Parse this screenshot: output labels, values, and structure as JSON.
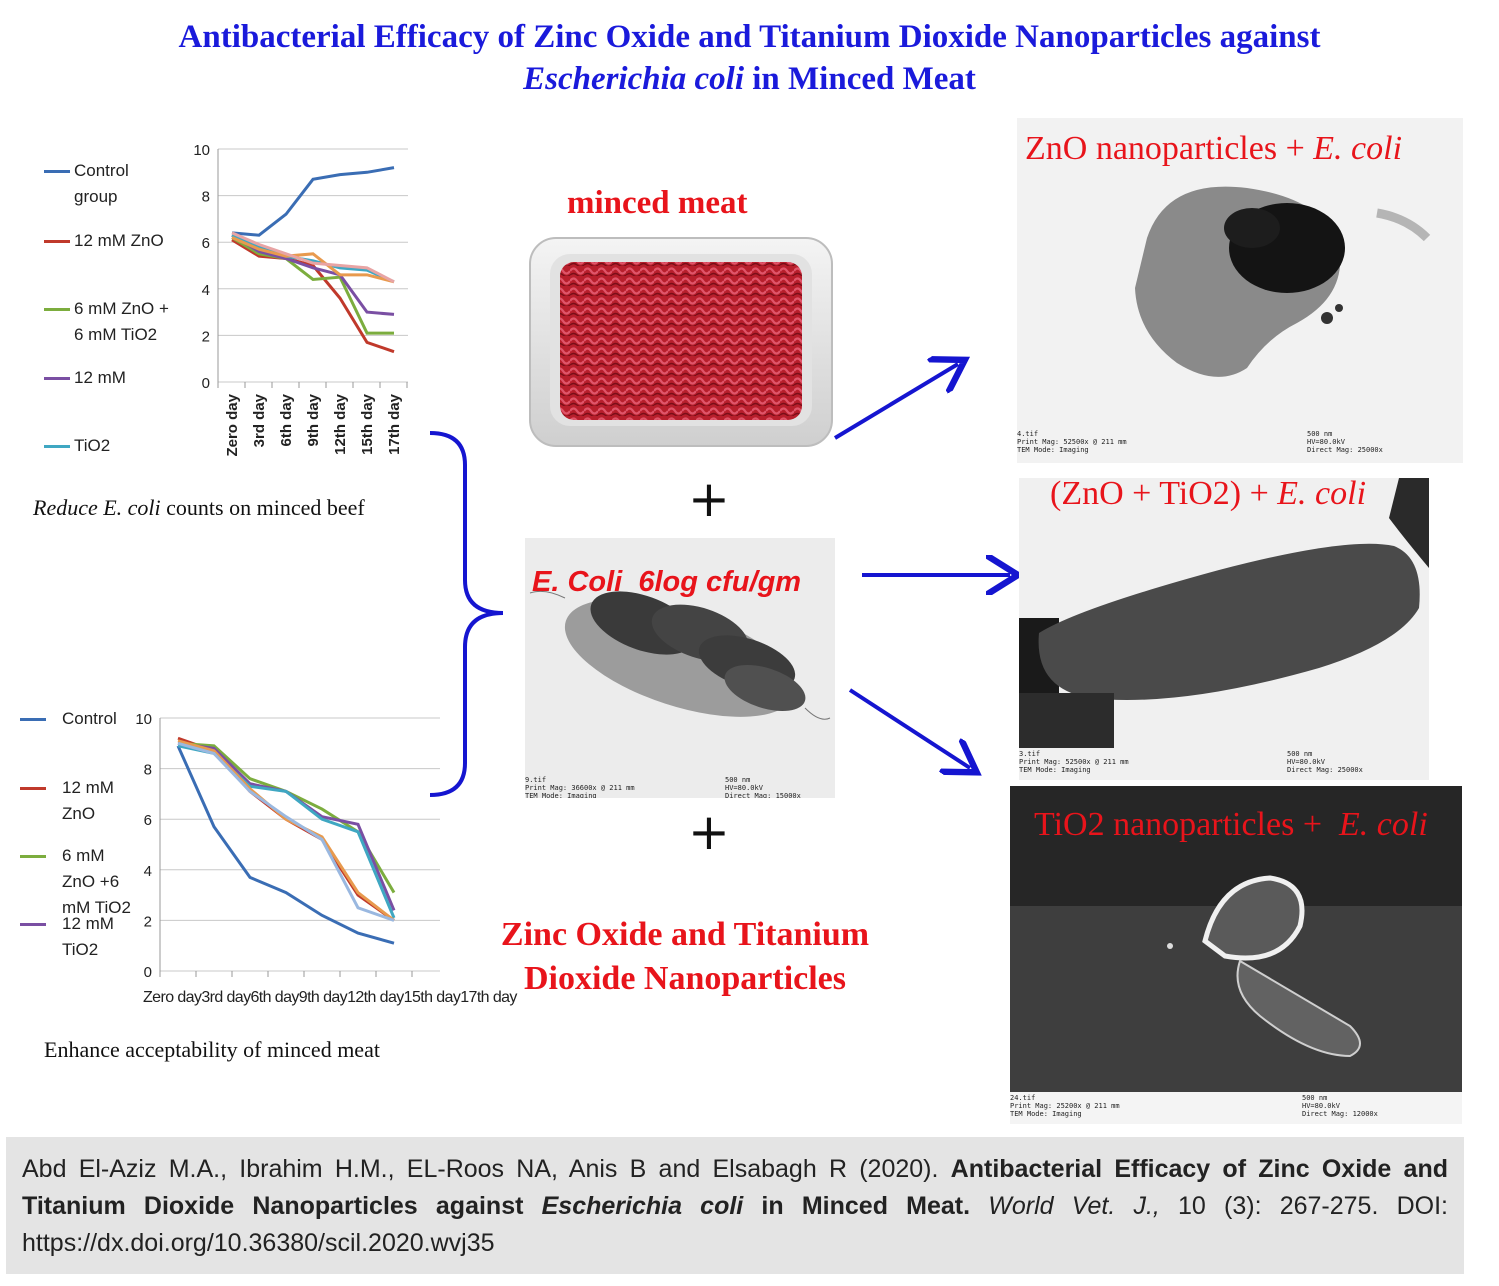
{
  "title": {
    "line1": "Antibacterial Efficacy of Zinc Oxide and Titanium Dioxide Nanoparticles against",
    "line2_italic": "Escherichia coli",
    "line2_rest": " in Minced Meat"
  },
  "chart1": {
    "legend": [
      "Control group",
      "12 mM ZnO",
      "6 mM ZnO + 6 mM TiO2",
      "12 mM",
      "TiO2"
    ],
    "caption_italic": "Reduce E. coli",
    "caption_rest": " counts on minced beef"
  },
  "chart2": {
    "legend": [
      "Control",
      "12 mM ZnO",
      "6 mM ZnO +6 mM TiO2",
      "12 mM TiO2"
    ],
    "xlabels_text": "Zero day3rd day6th day9th day12th day15th day17th day",
    "caption": "Enhance acceptability  of minced meat"
  },
  "center": {
    "meat_label": "minced meat",
    "plus": "+",
    "ecoli_label": "E. Coli  6log cfu/gm",
    "nano_label_1": "Zinc Oxide and Titanium",
    "nano_label_2": "Dioxide Nanoparticles"
  },
  "tem": {
    "zno_label": "ZnO nanoparticles + ",
    "zno_label_italic": "E. coli",
    "mix_label": "(ZnO + TiO2) + ",
    "mix_label_italic": "E. coli",
    "tio2_label": "TiO2 nanoparticles +  ",
    "tio2_label_italic": "E. coli",
    "foot1_left": "4.tif\nPrint Mag: 52500x @ 211 mm\nTEM Mode: Imaging",
    "foot1_right": "500 nm\nHV=80.0kV\nDirect Mag: 25000x",
    "foot2_left": "3.tif\nPrint Mag: 52500x @ 211 mm\nTEM Mode: Imaging",
    "foot2_right": "500 nm\nHV=80.0kV\nDirect Mag: 25000x",
    "foot3_left": "24.tif\nPrint Mag: 25200x @ 211 mm\nTEM Mode: Imaging",
    "foot3_right": "500 nm\nHV=80.0kV\nDirect Mag: 12000x",
    "foot4_left": "9.tif\nPrint Mag: 36600x @ 211 mm\nTEM Mode: Imaging",
    "foot4_right": "500 nm\nHV=80.0kV\nDirect Mag: 15000x"
  },
  "citation": {
    "authors": "Abd El-Aziz M.A., Ibrahim H.M., EL-Roos NA, Anis B and Elsabagh R (2020). ",
    "title_a": "Antibacterial Efficacy of Zinc Oxide and Titanium Dioxide Nanoparticles against ",
    "title_italic": "Escherichia coli",
    "title_b": " in Minced Meat.",
    "journal": " World Vet. J.,",
    "rest": " 10 (3): 267-275. DOI: https://dx.doi.org/10.36380/scil.2020.wvj35"
  },
  "chart_data": [
    {
      "type": "line",
      "categories": [
        "Zero day",
        "3rd day",
        "6th day",
        "9th day",
        "12th day",
        "15th day",
        "17th day"
      ],
      "ylim": [
        0,
        10
      ],
      "yticks": [
        0,
        2,
        4,
        6,
        8,
        10
      ],
      "series": [
        {
          "name": "Control group",
          "color": "#3a6db4",
          "values": [
            6.4,
            6.3,
            7.2,
            8.7,
            8.9,
            9.0,
            9.2
          ]
        },
        {
          "name": "12 mM ZnO",
          "color": "#c0392b",
          "values": [
            6.1,
            5.4,
            5.3,
            5.0,
            3.6,
            1.7,
            1.3
          ]
        },
        {
          "name": "6 mM ZnO + 6 mM TiO2",
          "color": "#7cad3e",
          "values": [
            6.2,
            5.5,
            5.3,
            4.4,
            4.5,
            2.1,
            2.1
          ]
        },
        {
          "name": "12 mM",
          "color": "#7a4fa3",
          "values": [
            6.3,
            5.6,
            5.3,
            4.9,
            4.6,
            3.0,
            2.9
          ]
        },
        {
          "name": "TiO2",
          "color": "#3fa7c2",
          "values": [
            6.3,
            5.8,
            5.4,
            5.2,
            4.9,
            4.8,
            4.3
          ]
        },
        {
          "color": "#e89a4e",
          "values": [
            6.2,
            5.7,
            5.4,
            5.5,
            4.6,
            4.6,
            4.3
          ]
        },
        {
          "color": "#e8a4a4",
          "values": [
            6.4,
            5.9,
            5.5,
            5.1,
            5.0,
            4.9,
            4.3
          ]
        }
      ]
    },
    {
      "type": "line",
      "categories": [
        "Zero day",
        "3rd day",
        "6th day",
        "9th day",
        "12th day",
        "15th day",
        "17th day"
      ],
      "ylim": [
        0,
        10
      ],
      "yticks": [
        0,
        2,
        4,
        6,
        8,
        10
      ],
      "series": [
        {
          "name": "Control",
          "color": "#3a6db4",
          "values": [
            8.9,
            5.7,
            3.7,
            3.1,
            2.2,
            1.5,
            1.1
          ]
        },
        {
          "name": "12 mM ZnO",
          "color": "#c0392b",
          "values": [
            9.2,
            8.7,
            7.1,
            6.0,
            5.2,
            3.0,
            2.0
          ]
        },
        {
          "name": "6 mM ZnO +6 mM TiO2",
          "color": "#7cad3e",
          "values": [
            9.0,
            8.9,
            7.6,
            7.1,
            6.4,
            5.5,
            3.1
          ]
        },
        {
          "name": "12 mM TiO2",
          "color": "#7a4fa3",
          "values": [
            9.0,
            8.8,
            7.4,
            7.1,
            6.1,
            5.8,
            2.4
          ]
        },
        {
          "color": "#3fa7c2",
          "values": [
            8.9,
            8.6,
            7.3,
            7.1,
            6.0,
            5.5,
            2.1
          ]
        },
        {
          "color": "#e89a4e",
          "values": [
            9.1,
            8.7,
            7.2,
            6.0,
            5.3,
            3.1,
            2.0
          ]
        },
        {
          "color": "#9ab8e0",
          "values": [
            9.0,
            8.6,
            7.1,
            6.1,
            5.2,
            2.5,
            2.0
          ]
        }
      ]
    }
  ]
}
